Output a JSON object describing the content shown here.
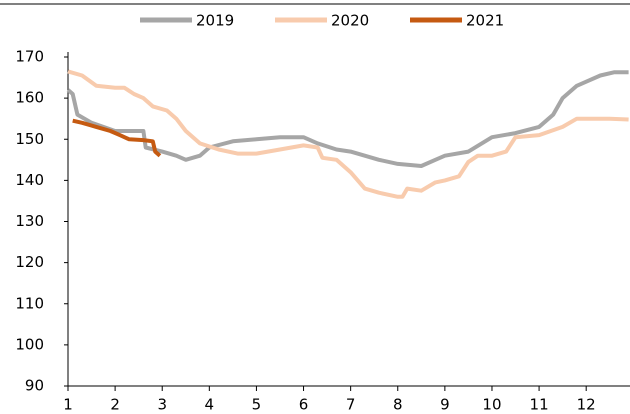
{
  "chart_data": {
    "type": "line",
    "xlim": [
      1,
      12.93
    ],
    "xticks": [
      1,
      2,
      3,
      4,
      5,
      6,
      7,
      8,
      9,
      10,
      11,
      12
    ],
    "ylim": [
      90,
      170
    ],
    "yticks": [
      90,
      100,
      110,
      120,
      130,
      140,
      150,
      160,
      170
    ],
    "legend": "top",
    "series": [
      {
        "name": "2019",
        "color": "#a6a6a6",
        "x": [
          1,
          1.1,
          1.2,
          1.5,
          2,
          2.6,
          2.65,
          3,
          3.3,
          3.5,
          3.8,
          4,
          4.5,
          5,
          5.5,
          6,
          6.3,
          6.7,
          7,
          7.3,
          7.6,
          8,
          8.5,
          8.8,
          9,
          9.5,
          10,
          10.5,
          11,
          11.3,
          11.5,
          11.8,
          12,
          12.3,
          12.6,
          12.9
        ],
        "values": [
          162,
          161,
          156,
          154,
          152,
          152,
          148,
          147,
          146,
          145,
          146,
          148,
          149.5,
          150,
          150.5,
          150.5,
          149,
          147.5,
          147,
          146,
          145,
          144,
          143.5,
          145,
          146,
          147,
          150.5,
          151.5,
          153,
          156,
          160,
          163,
          164,
          165.5,
          166.3,
          166.3
        ]
      },
      {
        "name": "2020",
        "color": "#f8cbad",
        "x": [
          1,
          1.3,
          1.6,
          2,
          2.2,
          2.4,
          2.6,
          2.8,
          3.1,
          3.3,
          3.5,
          3.8,
          4.2,
          4.6,
          5,
          5.5,
          6,
          6.3,
          6.4,
          6.7,
          7,
          7.3,
          7.6,
          8,
          8.1,
          8.2,
          8.5,
          8.8,
          9,
          9.3,
          9.5,
          9.7,
          10,
          10.3,
          10.5,
          11,
          11.5,
          11.8,
          12,
          12.5,
          12.9
        ],
        "values": [
          166.5,
          165.5,
          163,
          162.5,
          162.5,
          161,
          160,
          158,
          157,
          155,
          152,
          149,
          147.5,
          146.5,
          146.5,
          147.5,
          148.5,
          148,
          145.5,
          145,
          142,
          138,
          137,
          136,
          136,
          138,
          137.5,
          139.5,
          140,
          141,
          144.5,
          146,
          146,
          147,
          150.5,
          151,
          153,
          155,
          155,
          155,
          154.8
        ]
      },
      {
        "name": "2021",
        "color": "#c55a11",
        "x": [
          1.1,
          1.3,
          1.6,
          1.9,
          2.1,
          2.3,
          2.6,
          2.8,
          2.85,
          2.95
        ],
        "values": [
          154.5,
          154,
          153,
          152,
          151,
          150,
          149.8,
          149.5,
          147,
          146
        ]
      }
    ]
  }
}
